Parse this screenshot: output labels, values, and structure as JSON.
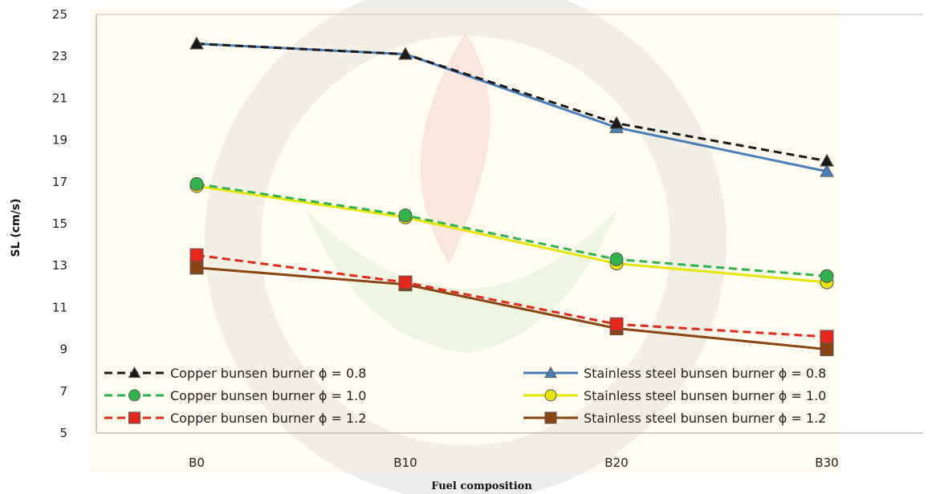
{
  "chart_data": {
    "type": "line",
    "title": "",
    "xlabel": "Fuel composition",
    "ylabel": "SL (cm/s)",
    "categories": [
      "B0",
      "B10",
      "B20",
      "B30"
    ],
    "ylim": [
      5,
      25
    ],
    "yticks": [
      5,
      7,
      9,
      11,
      13,
      15,
      17,
      19,
      21,
      23,
      25
    ],
    "grid": false,
    "legend_position": "bottom",
    "series": [
      {
        "name": "Copper bunsen burner ϕ = 0.8",
        "values": [
          23.6,
          23.1,
          19.8,
          18.0
        ],
        "color": "#1a1a1a",
        "dash": true,
        "marker": "triangle"
      },
      {
        "name": "Copper bunsen burner ϕ  = 1.0",
        "values": [
          16.9,
          15.4,
          13.3,
          12.5
        ],
        "color": "#2fb34a",
        "dash": true,
        "marker": "circle"
      },
      {
        "name": "Copper bunsen burner ϕ  = 1.2",
        "values": [
          13.5,
          12.2,
          10.2,
          9.6
        ],
        "color": "#e8261c",
        "dash": true,
        "marker": "square"
      },
      {
        "name": "Stainless steel bunsen burner ϕ = 0.8",
        "values": [
          23.6,
          23.1,
          19.6,
          17.5
        ],
        "color": "#4a7ebb",
        "dash": false,
        "marker": "triangle"
      },
      {
        "name": "Stainless steel bunsen burner ϕ  = 1.0",
        "values": [
          16.8,
          15.3,
          13.1,
          12.2
        ],
        "color": "#e6e600",
        "dash": false,
        "marker": "circle"
      },
      {
        "name": "Stainless steel bunsen burner ϕ  = 1.2",
        "values": [
          12.9,
          12.1,
          10.0,
          9.0
        ],
        "color": "#8b4513",
        "dash": false,
        "marker": "square"
      }
    ]
  }
}
